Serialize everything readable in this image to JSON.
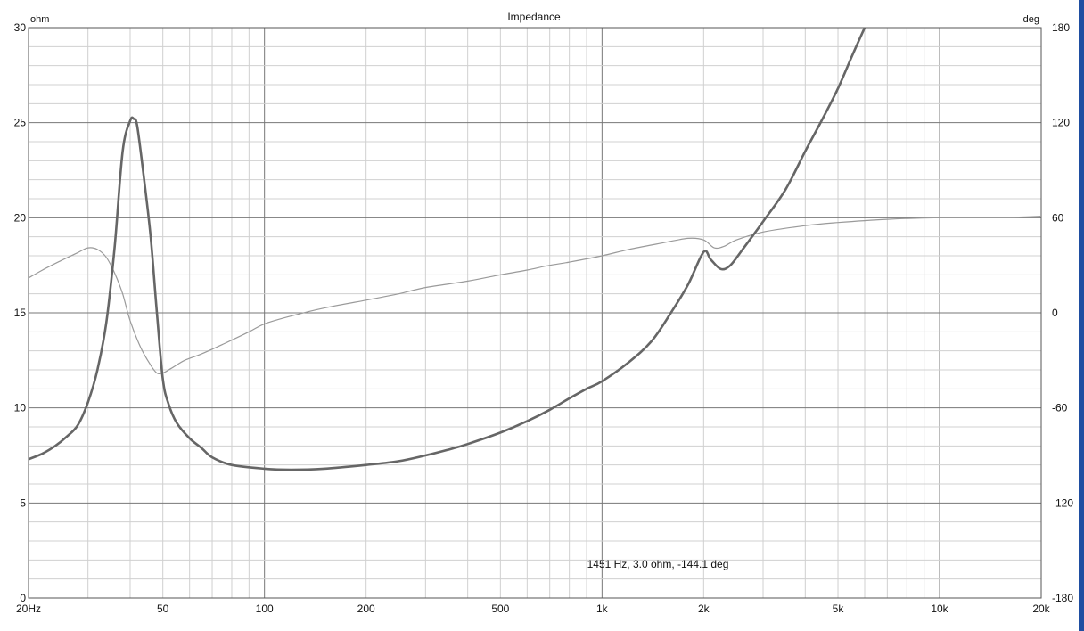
{
  "chart_data": {
    "type": "line",
    "title": "Impedance",
    "x_scale": "log",
    "xlim": [
      20,
      20000
    ],
    "ylim_left": [
      0,
      30
    ],
    "ylim_right": [
      -180,
      180
    ],
    "left_unit": "ohm",
    "right_unit": "deg",
    "grid": true,
    "x_ticks": [
      {
        "value": 20,
        "label": "20Hz"
      },
      {
        "value": 50,
        "label": "50"
      },
      {
        "value": 100,
        "label": "100"
      },
      {
        "value": 200,
        "label": "200"
      },
      {
        "value": 500,
        "label": "500"
      },
      {
        "value": 1000,
        "label": "1k"
      },
      {
        "value": 2000,
        "label": "2k"
      },
      {
        "value": 5000,
        "label": "5k"
      },
      {
        "value": 10000,
        "label": "10k"
      },
      {
        "value": 20000,
        "label": "20k"
      }
    ],
    "y_left_ticks": [
      0,
      5,
      10,
      15,
      20,
      25,
      30
    ],
    "y_right_ticks": [
      -180,
      -120,
      -60,
      0,
      60,
      120,
      180
    ],
    "readout": "1451 Hz, 3.0 ohm, -144.1 deg",
    "colors": {
      "magnitude": "#666666",
      "phase": "#9a9a9a",
      "grid_major": "#777777",
      "grid_minor": "#d0d0d0"
    },
    "series": [
      {
        "key": "magnitude",
        "axis": "left",
        "points": [
          [
            20,
            7.3
          ],
          [
            22,
            7.6
          ],
          [
            24,
            8.0
          ],
          [
            26,
            8.5
          ],
          [
            28,
            9.1
          ],
          [
            30,
            10.3
          ],
          [
            32,
            12.0
          ],
          [
            34,
            14.5
          ],
          [
            36,
            18.5
          ],
          [
            38,
            23.5
          ],
          [
            40,
            25.1
          ],
          [
            41,
            25.2
          ],
          [
            42,
            24.8
          ],
          [
            44,
            22.0
          ],
          [
            46,
            19.0
          ],
          [
            48,
            15.0
          ],
          [
            50,
            11.5
          ],
          [
            52,
            10.2
          ],
          [
            55,
            9.2
          ],
          [
            60,
            8.4
          ],
          [
            65,
            7.9
          ],
          [
            70,
            7.4
          ],
          [
            80,
            7.0
          ],
          [
            100,
            6.8
          ],
          [
            120,
            6.75
          ],
          [
            150,
            6.8
          ],
          [
            200,
            7.0
          ],
          [
            250,
            7.2
          ],
          [
            300,
            7.5
          ],
          [
            350,
            7.8
          ],
          [
            400,
            8.1
          ],
          [
            500,
            8.7
          ],
          [
            600,
            9.3
          ],
          [
            700,
            9.9
          ],
          [
            800,
            10.5
          ],
          [
            900,
            11.0
          ],
          [
            1000,
            11.4
          ],
          [
            1200,
            12.4
          ],
          [
            1400,
            13.5
          ],
          [
            1600,
            15.0
          ],
          [
            1800,
            16.5
          ],
          [
            2000,
            18.2
          ],
          [
            2100,
            17.8
          ],
          [
            2250,
            17.3
          ],
          [
            2400,
            17.5
          ],
          [
            2600,
            18.3
          ],
          [
            3000,
            19.8
          ],
          [
            3500,
            21.5
          ],
          [
            4000,
            23.5
          ],
          [
            4500,
            25.2
          ],
          [
            5000,
            26.8
          ],
          [
            5500,
            28.5
          ],
          [
            6000,
            30.0
          ]
        ]
      },
      {
        "key": "phase",
        "axis": "right",
        "points": [
          [
            20,
            22
          ],
          [
            22,
            27
          ],
          [
            25,
            33
          ],
          [
            28,
            38
          ],
          [
            30,
            41
          ],
          [
            32,
            40
          ],
          [
            34,
            35
          ],
          [
            36,
            25
          ],
          [
            38,
            12
          ],
          [
            40,
            -5
          ],
          [
            43,
            -22
          ],
          [
            46,
            -33
          ],
          [
            48,
            -38
          ],
          [
            50,
            -38
          ],
          [
            53,
            -35
          ],
          [
            58,
            -30
          ],
          [
            65,
            -26
          ],
          [
            75,
            -20
          ],
          [
            90,
            -12
          ],
          [
            100,
            -7
          ],
          [
            120,
            -2
          ],
          [
            150,
            3
          ],
          [
            200,
            8
          ],
          [
            250,
            12
          ],
          [
            300,
            16
          ],
          [
            400,
            20
          ],
          [
            500,
            24
          ],
          [
            600,
            27
          ],
          [
            700,
            30
          ],
          [
            800,
            32
          ],
          [
            1000,
            36
          ],
          [
            1200,
            40
          ],
          [
            1500,
            44
          ],
          [
            1800,
            47
          ],
          [
            2000,
            46
          ],
          [
            2150,
            41
          ],
          [
            2300,
            42
          ],
          [
            2500,
            46
          ],
          [
            3000,
            51
          ],
          [
            4000,
            55
          ],
          [
            5000,
            57
          ],
          [
            7000,
            59
          ],
          [
            10000,
            60
          ],
          [
            15000,
            60
          ],
          [
            20000,
            61
          ]
        ]
      }
    ]
  }
}
